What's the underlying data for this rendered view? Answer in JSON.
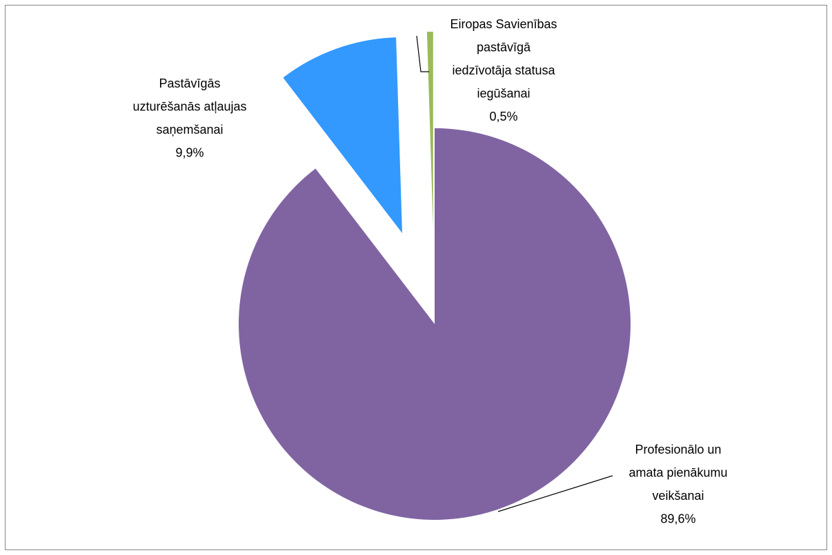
{
  "chart_data": {
    "type": "pie",
    "categories": [
      "Profesionālo un amata pienākumu veikšanai",
      "Pastāvīgās uzturēšanās atļaujas saņemšanai",
      "Eiropas Savienības pastāvīgā iedzīvotāja statusa iegūšanai"
    ],
    "values": [
      89.6,
      9.9,
      0.5
    ],
    "value_labels": [
      "89,6%",
      "9,9%",
      "0,5%"
    ],
    "colors": [
      "#8064a2",
      "#3399ff",
      "#9bbb59"
    ]
  }
}
